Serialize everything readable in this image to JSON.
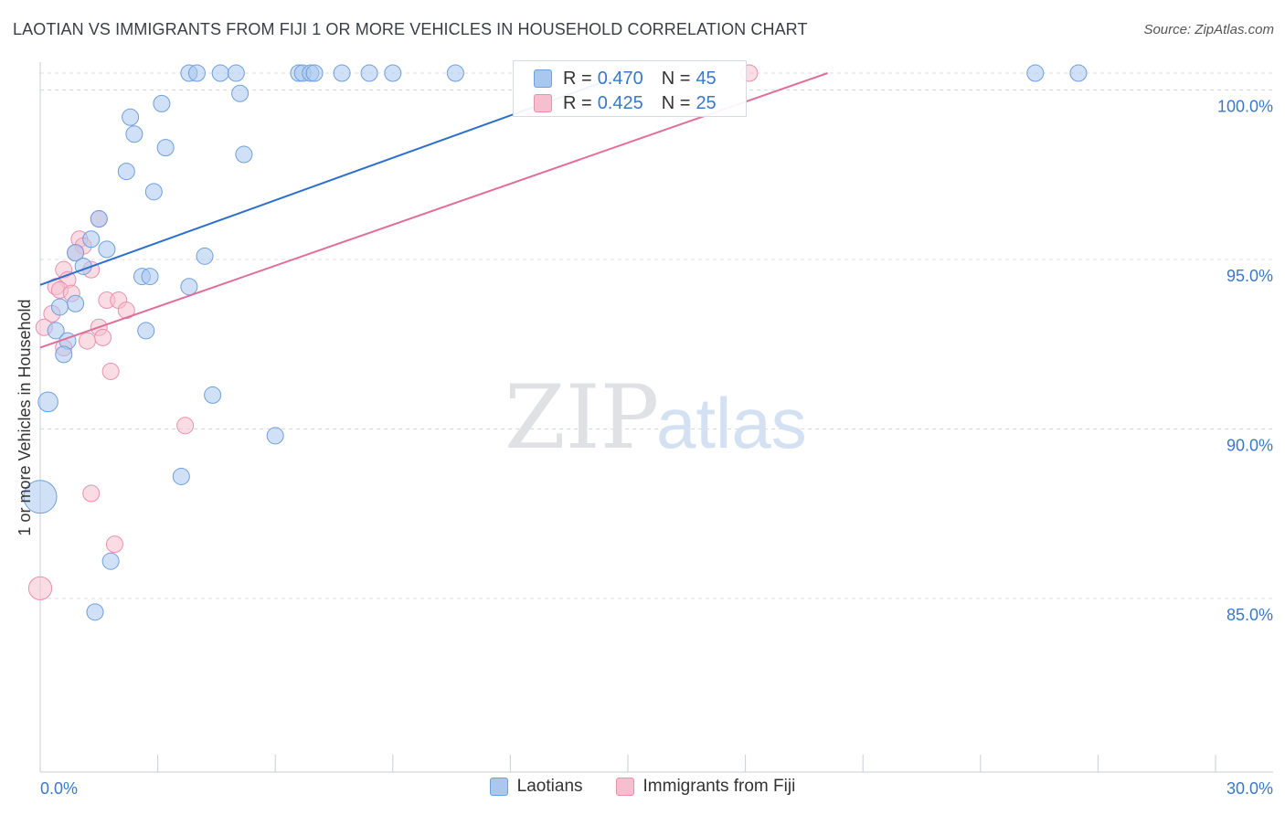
{
  "title": "LAOTIAN VS IMMIGRANTS FROM FIJI 1 OR MORE VEHICLES IN HOUSEHOLD CORRELATION CHART",
  "source": "Source: ZipAtlas.com",
  "watermark": {
    "zip": "ZIP",
    "atlas": "atlas"
  },
  "colors": {
    "blue_fill": "#a9c8f0",
    "blue_stroke": "#6f9fdc",
    "blue_line": "#2d6fcc",
    "pink_fill": "#f6bfd0",
    "pink_stroke": "#e891ad",
    "pink_line": "#e06e98",
    "tick_label": "#3a78c8",
    "grid": "#d9dde3"
  },
  "stats": {
    "series1": {
      "r_label": "R =",
      "r_value": "0.470",
      "n_label": "N =",
      "n_value": "45"
    },
    "series2": {
      "r_label": "R =",
      "r_value": "0.425",
      "n_label": "N =",
      "n_value": "25"
    }
  },
  "legend": {
    "series1": "Laotians",
    "series2": "Immigrants from Fiji"
  },
  "chart_data": {
    "type": "scatter",
    "title": "LAOTIAN VS IMMIGRANTS FROM FIJI 1 OR MORE VEHICLES IN HOUSEHOLD CORRELATION CHART",
    "xlabel": "",
    "ylabel": "1 or more Vehicles in Household",
    "xlim": [
      0,
      30
    ],
    "ylim": [
      80.5,
      101.2
    ],
    "x_tick_labels": [
      "0.0%",
      "30.0%"
    ],
    "y_ticks": [
      {
        "value": 85.0,
        "label": "85.0%"
      },
      {
        "value": 90.0,
        "label": "90.0%"
      },
      {
        "value": 95.0,
        "label": "95.0%"
      },
      {
        "value": 100.0,
        "label": "100.0%"
      }
    ],
    "y_gridlines": [
      85.0,
      90.0,
      95.0,
      100.0,
      100.5
    ],
    "series": [
      {
        "name": "Laotians",
        "color": "#6f9fdc",
        "trend": {
          "x0": 0.0,
          "y0": 94.25,
          "x1": 15.0,
          "y1": 100.5
        },
        "points": [
          {
            "x": 3.8,
            "y": 100.5,
            "s": 1
          },
          {
            "x": 4.0,
            "y": 100.5,
            "s": 1
          },
          {
            "x": 4.6,
            "y": 100.5,
            "s": 1
          },
          {
            "x": 5.0,
            "y": 100.5,
            "s": 1
          },
          {
            "x": 6.6,
            "y": 100.5,
            "s": 1
          },
          {
            "x": 6.7,
            "y": 100.5,
            "s": 1
          },
          {
            "x": 6.9,
            "y": 100.5,
            "s": 1
          },
          {
            "x": 7.0,
            "y": 100.5,
            "s": 1
          },
          {
            "x": 7.7,
            "y": 100.5,
            "s": 1
          },
          {
            "x": 8.4,
            "y": 100.5,
            "s": 1
          },
          {
            "x": 9.0,
            "y": 100.5,
            "s": 1
          },
          {
            "x": 10.6,
            "y": 100.5,
            "s": 1
          },
          {
            "x": 25.4,
            "y": 100.5,
            "s": 1
          },
          {
            "x": 26.5,
            "y": 100.5,
            "s": 1
          },
          {
            "x": 5.1,
            "y": 99.9,
            "s": 1
          },
          {
            "x": 3.1,
            "y": 99.6,
            "s": 1
          },
          {
            "x": 2.3,
            "y": 99.2,
            "s": 1
          },
          {
            "x": 2.4,
            "y": 98.7,
            "s": 1
          },
          {
            "x": 3.2,
            "y": 98.3,
            "s": 1
          },
          {
            "x": 5.2,
            "y": 98.1,
            "s": 1
          },
          {
            "x": 2.2,
            "y": 97.6,
            "s": 1
          },
          {
            "x": 2.9,
            "y": 97.0,
            "s": 1
          },
          {
            "x": 1.5,
            "y": 96.2,
            "s": 1
          },
          {
            "x": 1.3,
            "y": 95.6,
            "s": 1
          },
          {
            "x": 1.7,
            "y": 95.3,
            "s": 1
          },
          {
            "x": 0.9,
            "y": 95.2,
            "s": 1
          },
          {
            "x": 4.2,
            "y": 95.1,
            "s": 1
          },
          {
            "x": 1.1,
            "y": 94.8,
            "s": 1
          },
          {
            "x": 2.6,
            "y": 94.5,
            "s": 1
          },
          {
            "x": 2.8,
            "y": 94.5,
            "s": 1
          },
          {
            "x": 3.8,
            "y": 94.2,
            "s": 1
          },
          {
            "x": 0.9,
            "y": 93.7,
            "s": 1
          },
          {
            "x": 0.5,
            "y": 93.6,
            "s": 1
          },
          {
            "x": 0.4,
            "y": 92.9,
            "s": 1
          },
          {
            "x": 2.7,
            "y": 92.9,
            "s": 1
          },
          {
            "x": 0.7,
            "y": 92.6,
            "s": 1
          },
          {
            "x": 0.6,
            "y": 92.2,
            "s": 1
          },
          {
            "x": 4.4,
            "y": 91.0,
            "s": 1
          },
          {
            "x": 0.2,
            "y": 90.8,
            "s": 1.2
          },
          {
            "x": 6.0,
            "y": 89.8,
            "s": 1
          },
          {
            "x": 3.6,
            "y": 88.6,
            "s": 1
          },
          {
            "x": 0.0,
            "y": 88.0,
            "s": 2.0
          },
          {
            "x": 1.8,
            "y": 86.1,
            "s": 1
          },
          {
            "x": 1.4,
            "y": 84.6,
            "s": 1
          }
        ]
      },
      {
        "name": "Immigrants from Fiji",
        "color": "#e891ad",
        "trend": {
          "x0": 0.0,
          "y0": 92.4,
          "x1": 20.1,
          "y1": 100.5
        },
        "points": [
          {
            "x": 18.1,
            "y": 100.5,
            "s": 1
          },
          {
            "x": 1.5,
            "y": 96.2,
            "s": 1
          },
          {
            "x": 1.0,
            "y": 95.6,
            "s": 1
          },
          {
            "x": 1.1,
            "y": 95.4,
            "s": 1
          },
          {
            "x": 0.9,
            "y": 95.2,
            "s": 1
          },
          {
            "x": 0.6,
            "y": 94.7,
            "s": 1
          },
          {
            "x": 1.3,
            "y": 94.7,
            "s": 1
          },
          {
            "x": 0.7,
            "y": 94.4,
            "s": 1
          },
          {
            "x": 0.4,
            "y": 94.2,
            "s": 1
          },
          {
            "x": 0.5,
            "y": 94.1,
            "s": 1
          },
          {
            "x": 0.8,
            "y": 94.0,
            "s": 1
          },
          {
            "x": 1.7,
            "y": 93.8,
            "s": 1
          },
          {
            "x": 2.0,
            "y": 93.8,
            "s": 1
          },
          {
            "x": 2.2,
            "y": 93.5,
            "s": 1
          },
          {
            "x": 0.3,
            "y": 93.4,
            "s": 1
          },
          {
            "x": 0.1,
            "y": 93.0,
            "s": 1
          },
          {
            "x": 1.5,
            "y": 93.0,
            "s": 1
          },
          {
            "x": 1.6,
            "y": 92.7,
            "s": 1
          },
          {
            "x": 1.2,
            "y": 92.6,
            "s": 1
          },
          {
            "x": 0.6,
            "y": 92.4,
            "s": 1
          },
          {
            "x": 1.8,
            "y": 91.7,
            "s": 1
          },
          {
            "x": 3.7,
            "y": 90.1,
            "s": 1
          },
          {
            "x": 1.3,
            "y": 88.1,
            "s": 1
          },
          {
            "x": 1.9,
            "y": 86.6,
            "s": 1
          },
          {
            "x": 0.0,
            "y": 85.3,
            "s": 1.4
          }
        ]
      }
    ]
  }
}
